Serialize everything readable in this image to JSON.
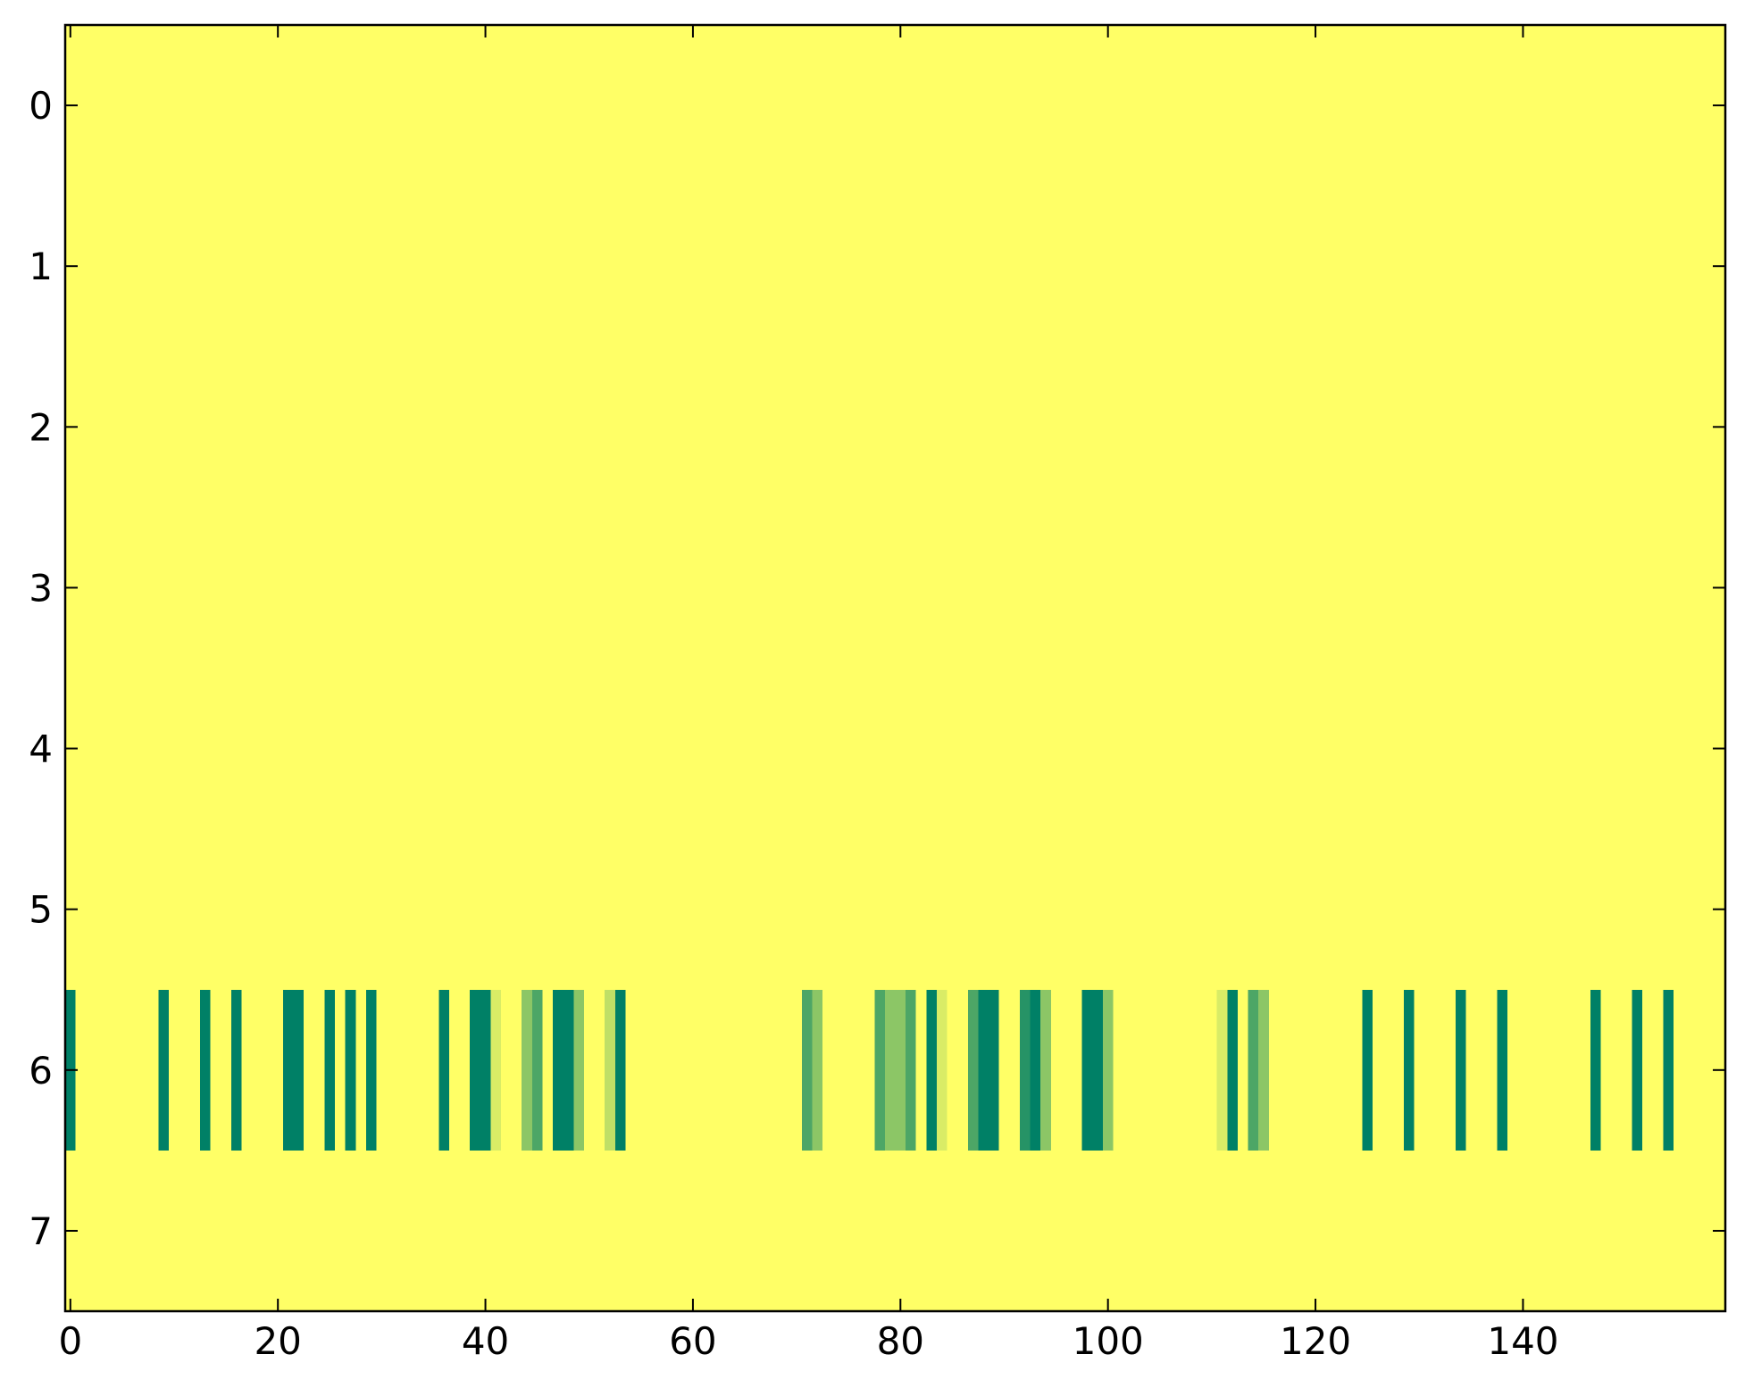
{
  "chart_data": {
    "type": "heatmap",
    "colormap": "summer_r",
    "clim": [
      0,
      1
    ],
    "xlim": [
      -0.5,
      159.5
    ],
    "ylim": [
      7.5,
      -0.5
    ],
    "xticks": [
      0,
      20,
      40,
      60,
      80,
      100,
      120,
      140
    ],
    "yticks": [
      0,
      1,
      2,
      3,
      4,
      5,
      6,
      7
    ],
    "z": [
      [
        0,
        0,
        0,
        0,
        0,
        0,
        0,
        0,
        0,
        0,
        0,
        0,
        0,
        0,
        0,
        0,
        0,
        0,
        0,
        0,
        0,
        0,
        0,
        0,
        0,
        0,
        0,
        0,
        0,
        0,
        0,
        0,
        0,
        0,
        0,
        0,
        0,
        0,
        0,
        0,
        0,
        0,
        0,
        0,
        0,
        0,
        0,
        0,
        0,
        0,
        0,
        0,
        0,
        0,
        0,
        0,
        0,
        0,
        0,
        0,
        0,
        0,
        0,
        0,
        0,
        0,
        0,
        0,
        0,
        0,
        0,
        0,
        0,
        0,
        0,
        0,
        0,
        0,
        0,
        0,
        0,
        0,
        0,
        0,
        0,
        0,
        0,
        0,
        0,
        0,
        0,
        0,
        0,
        0,
        0,
        0,
        0,
        0,
        0,
        0,
        0,
        0,
        0,
        0,
        0,
        0,
        0,
        0,
        0,
        0,
        0,
        0,
        0,
        0,
        0,
        0,
        0,
        0,
        0,
        0,
        0,
        0,
        0,
        0,
        0,
        0,
        0,
        0,
        0,
        0,
        0,
        0,
        0,
        0,
        0,
        0,
        0,
        0,
        0,
        0,
        0,
        0,
        0,
        0,
        0,
        0,
        0,
        0,
        0,
        0,
        0,
        0,
        0,
        0,
        0,
        0,
        0,
        0,
        0,
        0
      ],
      [
        0,
        0,
        0,
        0,
        0,
        0,
        0,
        0,
        0,
        0,
        0,
        0,
        0,
        0,
        0,
        0,
        0,
        0,
        0,
        0,
        0,
        0,
        0,
        0,
        0,
        0,
        0,
        0,
        0,
        0,
        0,
        0,
        0,
        0,
        0,
        0,
        0,
        0,
        0,
        0,
        0,
        0,
        0,
        0,
        0,
        0,
        0,
        0,
        0,
        0,
        0,
        0,
        0,
        0,
        0,
        0,
        0,
        0,
        0,
        0,
        0,
        0,
        0,
        0,
        0,
        0,
        0,
        0,
        0,
        0,
        0,
        0,
        0,
        0,
        0,
        0,
        0,
        0,
        0,
        0,
        0,
        0,
        0,
        0,
        0,
        0,
        0,
        0,
        0,
        0,
        0,
        0,
        0,
        0,
        0,
        0,
        0,
        0,
        0,
        0,
        0,
        0,
        0,
        0,
        0,
        0,
        0,
        0,
        0,
        0,
        0,
        0,
        0,
        0,
        0,
        0,
        0,
        0,
        0,
        0,
        0,
        0,
        0,
        0,
        0,
        0,
        0,
        0,
        0,
        0,
        0,
        0,
        0,
        0,
        0,
        0,
        0,
        0,
        0,
        0,
        0,
        0,
        0,
        0,
        0,
        0,
        0,
        0,
        0,
        0,
        0,
        0,
        0,
        0,
        0,
        0,
        0,
        0,
        0,
        0
      ],
      [
        0,
        0,
        0,
        0,
        0,
        0,
        0,
        0,
        0,
        0,
        0,
        0,
        0,
        0,
        0,
        0,
        0,
        0,
        0,
        0,
        0,
        0,
        0,
        0,
        0,
        0,
        0,
        0,
        0,
        0,
        0,
        0,
        0,
        0,
        0,
        0,
        0,
        0,
        0,
        0,
        0,
        0,
        0,
        0,
        0,
        0,
        0,
        0,
        0,
        0,
        0,
        0,
        0,
        0,
        0,
        0,
        0,
        0,
        0,
        0,
        0,
        0,
        0,
        0,
        0,
        0,
        0,
        0,
        0,
        0,
        0,
        0,
        0,
        0,
        0,
        0,
        0,
        0,
        0,
        0,
        0,
        0,
        0,
        0,
        0,
        0,
        0,
        0,
        0,
        0,
        0,
        0,
        0,
        0,
        0,
        0,
        0,
        0,
        0,
        0,
        0,
        0,
        0,
        0,
        0,
        0,
        0,
        0,
        0,
        0,
        0,
        0,
        0,
        0,
        0,
        0,
        0,
        0,
        0,
        0,
        0,
        0,
        0,
        0,
        0,
        0,
        0,
        0,
        0,
        0,
        0,
        0,
        0,
        0,
        0,
        0,
        0,
        0,
        0,
        0,
        0,
        0,
        0,
        0,
        0,
        0,
        0,
        0,
        0,
        0,
        0,
        0,
        0,
        0,
        0,
        0,
        0,
        0,
        0,
        0
      ],
      [
        0,
        0,
        0,
        0,
        0,
        0,
        0,
        0,
        0,
        0,
        0,
        0,
        0,
        0,
        0,
        0,
        0,
        0,
        0,
        0,
        0,
        0,
        0,
        0,
        0,
        0,
        0,
        0,
        0,
        0,
        0,
        0,
        0,
        0,
        0,
        0,
        0,
        0,
        0,
        0,
        0,
        0,
        0,
        0,
        0,
        0,
        0,
        0,
        0,
        0,
        0,
        0,
        0,
        0,
        0,
        0,
        0,
        0,
        0,
        0,
        0,
        0,
        0,
        0,
        0,
        0,
        0,
        0,
        0,
        0,
        0,
        0,
        0,
        0,
        0,
        0,
        0,
        0,
        0,
        0,
        0,
        0,
        0,
        0,
        0,
        0,
        0,
        0,
        0,
        0,
        0,
        0,
        0,
        0,
        0,
        0,
        0,
        0,
        0,
        0,
        0,
        0,
        0,
        0,
        0,
        0,
        0,
        0,
        0,
        0,
        0,
        0,
        0,
        0,
        0,
        0,
        0,
        0,
        0,
        0,
        0,
        0,
        0,
        0,
        0,
        0,
        0,
        0,
        0,
        0,
        0,
        0,
        0,
        0,
        0,
        0,
        0,
        0,
        0,
        0,
        0,
        0,
        0,
        0,
        0,
        0,
        0,
        0,
        0,
        0,
        0,
        0,
        0,
        0,
        0,
        0,
        0,
        0,
        0,
        0
      ],
      [
        0,
        0,
        0,
        0,
        0,
        0,
        0,
        0,
        0,
        0,
        0,
        0,
        0,
        0,
        0,
        0,
        0,
        0,
        0,
        0,
        0,
        0,
        0,
        0,
        0,
        0,
        0,
        0,
        0,
        0,
        0,
        0,
        0,
        0,
        0,
        0,
        0,
        0,
        0,
        0,
        0,
        0,
        0,
        0,
        0,
        0,
        0,
        0,
        0,
        0,
        0,
        0,
        0,
        0,
        0,
        0,
        0,
        0,
        0,
        0,
        0,
        0,
        0,
        0,
        0,
        0,
        0,
        0,
        0,
        0,
        0,
        0,
        0,
        0,
        0,
        0,
        0,
        0,
        0,
        0,
        0,
        0,
        0,
        0,
        0,
        0,
        0,
        0,
        0,
        0,
        0,
        0,
        0,
        0,
        0,
        0,
        0,
        0,
        0,
        0,
        0,
        0,
        0,
        0,
        0,
        0,
        0,
        0,
        0,
        0,
        0,
        0,
        0,
        0,
        0,
        0,
        0,
        0,
        0,
        0,
        0,
        0,
        0,
        0,
        0,
        0,
        0,
        0,
        0,
        0,
        0,
        0,
        0,
        0,
        0,
        0,
        0,
        0,
        0,
        0,
        0,
        0,
        0,
        0,
        0,
        0,
        0,
        0,
        0,
        0,
        0,
        0,
        0,
        0,
        0,
        0,
        0,
        0,
        0,
        0
      ],
      [
        0,
        0,
        0,
        0,
        0,
        0,
        0,
        0,
        0,
        0,
        0,
        0,
        0,
        0,
        0,
        0,
        0,
        0,
        0,
        0,
        0,
        0,
        0,
        0,
        0,
        0,
        0,
        0,
        0,
        0,
        0,
        0,
        0,
        0,
        0,
        0,
        0,
        0,
        0,
        0,
        0,
        0,
        0,
        0,
        0,
        0,
        0,
        0,
        0,
        0,
        0,
        0,
        0,
        0,
        0,
        0,
        0,
        0,
        0,
        0,
        0,
        0,
        0,
        0,
        0,
        0,
        0,
        0,
        0,
        0,
        0,
        0,
        0,
        0,
        0,
        0,
        0,
        0,
        0,
        0,
        0,
        0,
        0,
        0,
        0,
        0,
        0,
        0,
        0,
        0,
        0,
        0,
        0,
        0,
        0,
        0,
        0,
        0,
        0,
        0,
        0,
        0,
        0,
        0,
        0,
        0,
        0,
        0,
        0,
        0,
        0,
        0,
        0,
        0,
        0,
        0,
        0,
        0,
        0,
        0,
        0,
        0,
        0,
        0,
        0,
        0,
        0,
        0,
        0,
        0,
        0,
        0,
        0,
        0,
        0,
        0,
        0,
        0,
        0,
        0,
        0,
        0,
        0,
        0,
        0,
        0,
        0,
        0,
        0,
        0,
        0,
        0,
        0,
        0,
        0,
        0,
        0,
        0,
        0,
        0
      ],
      [
        1,
        0,
        0,
        0,
        0,
        0,
        0,
        0,
        0,
        1,
        0,
        0,
        0,
        1,
        0,
        0,
        1,
        0,
        0,
        0,
        0,
        1,
        1,
        0,
        0,
        1,
        0,
        1,
        0,
        1,
        0,
        0,
        0,
        0,
        0,
        0,
        1,
        0,
        0,
        1,
        1,
        0.15,
        0,
        0,
        0.45,
        0.7,
        0,
        1,
        1,
        0.45,
        0,
        0,
        0.25,
        1,
        0,
        0,
        0,
        0,
        0,
        0,
        0,
        0,
        0,
        0,
        0,
        0,
        0,
        0,
        0,
        0,
        0,
        0.7,
        0.45,
        0,
        0,
        0,
        0,
        0,
        0.7,
        0.45,
        0.45,
        0.7,
        0,
        1,
        0.15,
        0,
        0,
        0.7,
        1,
        1,
        0,
        0,
        0.85,
        1,
        0.45,
        0,
        0,
        0,
        1,
        1,
        0.45,
        0,
        0,
        0,
        0,
        0,
        0,
        0,
        0,
        0,
        0,
        0.15,
        1,
        0,
        0.7,
        0.45,
        0,
        0,
        0,
        0,
        0,
        0,
        0,
        0,
        0,
        1,
        0,
        0,
        0,
        1,
        0,
        0,
        0,
        0,
        1,
        0,
        0,
        0,
        1,
        0,
        0,
        0,
        0,
        0,
        0,
        0,
        0,
        1,
        0,
        0,
        0,
        1,
        0,
        0,
        1,
        0,
        0,
        0,
        0,
        0
      ],
      [
        0,
        0,
        0,
        0,
        0,
        0,
        0,
        0,
        0,
        0,
        0,
        0,
        0,
        0,
        0,
        0,
        0,
        0,
        0,
        0,
        0,
        0,
        0,
        0,
        0,
        0,
        0,
        0,
        0,
        0,
        0,
        0,
        0,
        0,
        0,
        0,
        0,
        0,
        0,
        0,
        0,
        0,
        0,
        0,
        0,
        0,
        0,
        0,
        0,
        0,
        0,
        0,
        0,
        0,
        0,
        0,
        0,
        0,
        0,
        0,
        0,
        0,
        0,
        0,
        0,
        0,
        0,
        0,
        0,
        0,
        0,
        0,
        0,
        0,
        0,
        0,
        0,
        0,
        0,
        0,
        0,
        0,
        0,
        0,
        0,
        0,
        0,
        0,
        0,
        0,
        0,
        0,
        0,
        0,
        0,
        0,
        0,
        0,
        0,
        0,
        0,
        0,
        0,
        0,
        0,
        0,
        0,
        0,
        0,
        0,
        0,
        0,
        0,
        0,
        0,
        0,
        0,
        0,
        0,
        0,
        0,
        0,
        0,
        0,
        0,
        0,
        0,
        0,
        0,
        0,
        0,
        0,
        0,
        0,
        0,
        0,
        0,
        0,
        0,
        0,
        0,
        0,
        0,
        0,
        0,
        0,
        0,
        0,
        0,
        0,
        0,
        0,
        0,
        0,
        0,
        0,
        0,
        0,
        0,
        0
      ]
    ]
  }
}
